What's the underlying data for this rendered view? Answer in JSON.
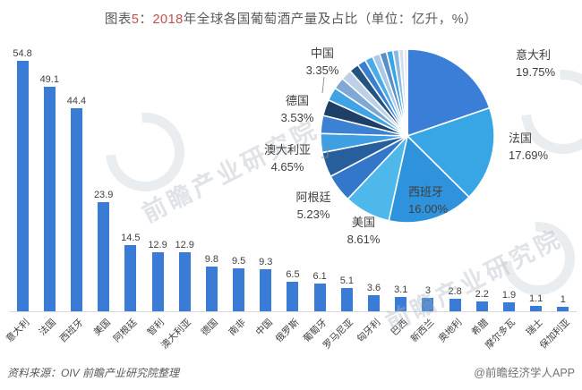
{
  "title": {
    "parts": [
      {
        "text": "图表",
        "color": "#595959"
      },
      {
        "text": "5",
        "color": "#c0504d"
      },
      {
        "text": "：",
        "color": "#595959"
      },
      {
        "text": "2018",
        "color": "#c0504d"
      },
      {
        "text": "年全球各国葡萄酒产量及占比（单位：亿升，%）",
        "color": "#595959"
      }
    ]
  },
  "chart_data": [
    {
      "type": "bar",
      "title": "2018年全球各国葡萄酒产量（亿升）",
      "categories": [
        "意大利",
        "法国",
        "西班牙",
        "美国",
        "阿根廷",
        "智利",
        "澳大利亚",
        "德国",
        "南非",
        "中国",
        "俄罗斯",
        "葡萄牙",
        "罗马尼亚",
        "匈牙利",
        "巴西",
        "新西兰",
        "奥地利",
        "希腊",
        "摩尔多瓦",
        "瑞士",
        "保加利亚"
      ],
      "values": [
        54.8,
        49.1,
        44.4,
        23.9,
        14.5,
        12.9,
        12.9,
        9.8,
        9.5,
        9.3,
        6.5,
        6.1,
        5.1,
        3.6,
        3.1,
        3,
        2.8,
        2.2,
        1.9,
        1.1,
        1
      ],
      "bar_color": "#3a7cd5",
      "xlabel": "",
      "ylabel": "",
      "ylim": [
        0,
        58
      ],
      "grid": false,
      "legend": "none"
    },
    {
      "type": "pie",
      "title": "2018年全球各国葡萄酒产量占比（%）",
      "legend": "none",
      "slices": [
        {
          "name": "意大利",
          "pct": 19.75,
          "label": "意大利",
          "pct_label": "19.75%",
          "color": "#3b7ed7"
        },
        {
          "name": "法国",
          "pct": 17.69,
          "label": "法国",
          "pct_label": "17.69%",
          "color": "#38a6e5"
        },
        {
          "name": "西班牙",
          "pct": 16.0,
          "label": "西班牙",
          "pct_label": "16.00%",
          "color": "#2e93dc"
        },
        {
          "name": "美国",
          "pct": 8.61,
          "label": "美国",
          "pct_label": "8.61%",
          "color": "#4fb8eb"
        },
        {
          "name": "阿根廷",
          "pct": 5.23,
          "label": "阿根廷",
          "pct_label": "5.23%",
          "color": "#3377cb"
        },
        {
          "name": "澳大利亚",
          "pct": 4.65,
          "label": "澳大利亚",
          "pct_label": "4.65%",
          "color": "#275e9c"
        },
        {
          "name": "德国",
          "pct": 3.53,
          "label": "德国",
          "pct_label": "3.53%",
          "color": "#3ea0e2"
        },
        {
          "name": "中国",
          "pct": 3.35,
          "label": "中国",
          "pct_label": "3.35%",
          "color": "#3c81d3"
        },
        {
          "name": "",
          "pct": 3.0,
          "color": "#1e4066"
        },
        {
          "name": "",
          "pct": 2.5,
          "color": "#3fa3e6"
        },
        {
          "name": "",
          "pct": 2.2,
          "color": "#7fa8d4"
        },
        {
          "name": "",
          "pct": 2.0,
          "color": "#bcd1e8"
        },
        {
          "name": "",
          "pct": 1.8,
          "color": "#24537f"
        },
        {
          "name": "",
          "pct": 1.6,
          "color": "#3b7fd0"
        },
        {
          "name": "",
          "pct": 1.5,
          "color": "#49ace8"
        },
        {
          "name": "",
          "pct": 1.4,
          "color": "#a9c9e8"
        },
        {
          "name": "",
          "pct": 1.3,
          "color": "#5b8fc4"
        },
        {
          "name": "",
          "pct": 1.2,
          "color": "#38a5e8"
        },
        {
          "name": "",
          "pct": 1.1,
          "color": "#8fb8dc"
        },
        {
          "name": "",
          "pct": 0.9,
          "color": "#cfe0f0"
        },
        {
          "name": "",
          "pct": 0.69,
          "color": "#e9ebee"
        }
      ]
    }
  ],
  "source_note": "资料来源：OIV  前瞻产业研究院整理",
  "credit": "@前瞻经济学人APP",
  "watermark_text": "前瞻产业研究院"
}
